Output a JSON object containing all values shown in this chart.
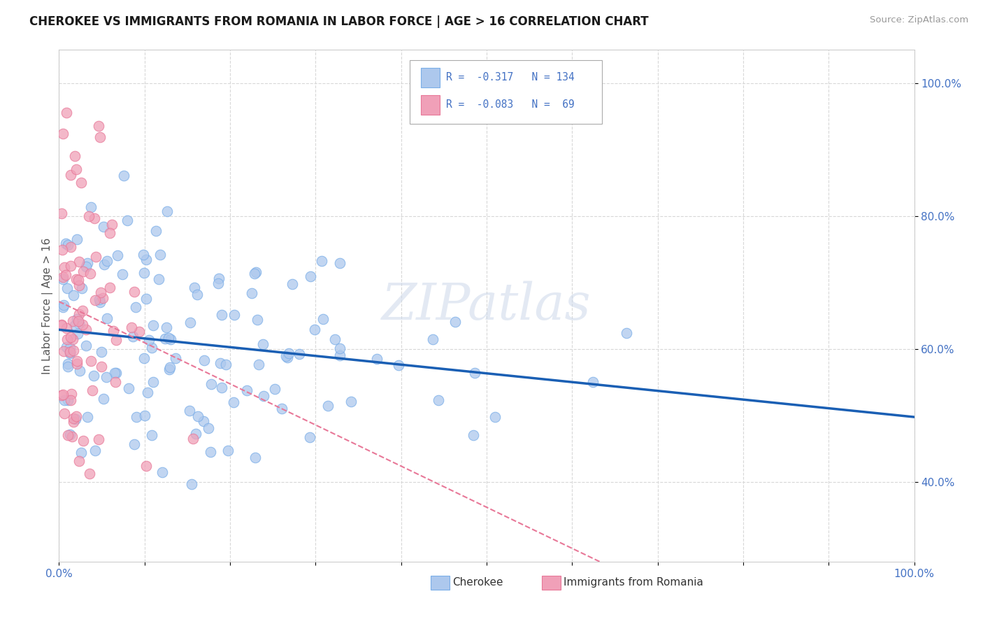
{
  "title": "CHEROKEE VS IMMIGRANTS FROM ROMANIA IN LABOR FORCE | AGE > 16 CORRELATION CHART",
  "source": "Source: ZipAtlas.com",
  "ylabel": "In Labor Force | Age > 16",
  "cherokee_color": "#adc8ed",
  "cherokee_edge": "#7aaee8",
  "romania_color": "#f0a0b8",
  "romania_edge": "#e87898",
  "trend_cherokee_color": "#1a5fb4",
  "trend_romania_color": "#e87898",
  "legend_R_cherokee": "R =  -0.317",
  "legend_N_cherokee": "N = 134",
  "legend_R_romania": "R =  -0.083",
  "legend_N_romania": "N =  69",
  "watermark": "ZIPatlas",
  "grid_color": "#d8d8d8",
  "tick_color": "#4472c4",
  "xlim": [
    0.0,
    1.0
  ],
  "ylim": [
    0.28,
    1.05
  ],
  "yticks": [
    0.4,
    0.6,
    0.8,
    1.0
  ],
  "ytick_labels": [
    "40.0%",
    "60.0%",
    "80.0%",
    "100.0%"
  ]
}
